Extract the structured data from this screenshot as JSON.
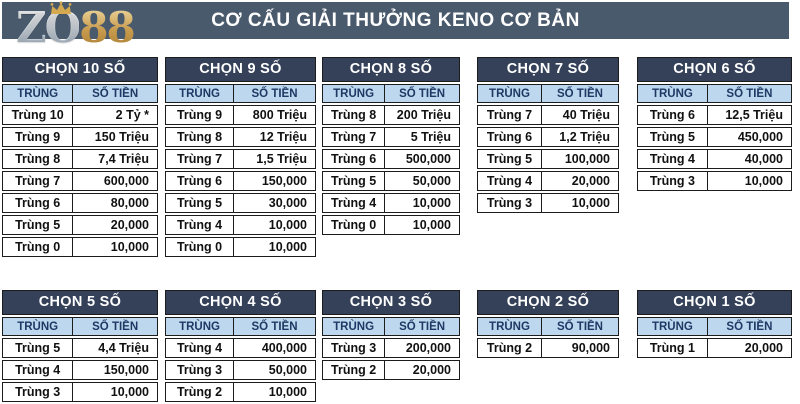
{
  "banner": {
    "title": "CƠ CẤU GIẢI THƯỞNG KENO CƠ BẢN",
    "logo": {
      "text_main": "ZO",
      "text_accent": "88",
      "crown_icon": "gold-crown"
    }
  },
  "table_columns": {
    "match_label": "TRÙNG",
    "amount_label": "SỐ TIỀN"
  },
  "prize_tables": [
    {
      "title": "CHỌN 10 SỐ",
      "rows": [
        {
          "match": "Trùng 10",
          "amount": "2 Tỷ *"
        },
        {
          "match": "Trùng 9",
          "amount": "150 Triệu"
        },
        {
          "match": "Trùng 8",
          "amount": "7,4 Triệu"
        },
        {
          "match": "Trùng 7",
          "amount": "600,000"
        },
        {
          "match": "Trùng 6",
          "amount": "80,000"
        },
        {
          "match": "Trùng 5",
          "amount": "20,000"
        },
        {
          "match": "Trùng 0",
          "amount": "10,000"
        }
      ]
    },
    {
      "title": "CHỌN 9 SỐ",
      "rows": [
        {
          "match": "Trùng 9",
          "amount": "800 Triệu"
        },
        {
          "match": "Trùng 8",
          "amount": "12 Triệu"
        },
        {
          "match": "Trùng 7",
          "amount": "1,5 Triệu"
        },
        {
          "match": "Trùng 6",
          "amount": "150,000"
        },
        {
          "match": "Trùng 5",
          "amount": "30,000"
        },
        {
          "match": "Trùng 4",
          "amount": "10,000"
        },
        {
          "match": "Trùng 0",
          "amount": "10,000"
        }
      ]
    },
    {
      "title": "CHỌN 8 SỐ",
      "rows": [
        {
          "match": "Trùng 8",
          "amount": "200 Triệu"
        },
        {
          "match": "Trùng 7",
          "amount": "5 Triệu"
        },
        {
          "match": "Trùng 6",
          "amount": "500,000"
        },
        {
          "match": "Trùng 5",
          "amount": "50,000"
        },
        {
          "match": "Trùng 4",
          "amount": "10,000"
        },
        {
          "match": "Trùng 0",
          "amount": "10,000"
        }
      ]
    },
    {
      "title": "CHỌN 7 SỐ",
      "rows": [
        {
          "match": "Trùng 7",
          "amount": "40 Triệu"
        },
        {
          "match": "Trùng 6",
          "amount": "1,2 Triệu"
        },
        {
          "match": "Trùng 5",
          "amount": "100,000"
        },
        {
          "match": "Trùng 4",
          "amount": "20,000"
        },
        {
          "match": "Trùng 3",
          "amount": "10,000"
        }
      ]
    },
    {
      "title": "CHỌN 6 SỐ",
      "rows": [
        {
          "match": "Trùng 6",
          "amount": "12,5 Triệu"
        },
        {
          "match": "Trùng 5",
          "amount": "450,000"
        },
        {
          "match": "Trùng 4",
          "amount": "40,000"
        },
        {
          "match": "Trùng 3",
          "amount": "10,000"
        }
      ]
    },
    {
      "title": "CHỌN 5 SỐ",
      "rows": [
        {
          "match": "Trùng 5",
          "amount": "4,4 Triệu"
        },
        {
          "match": "Trùng 4",
          "amount": "150,000"
        },
        {
          "match": "Trùng 3",
          "amount": "10,000"
        }
      ]
    },
    {
      "title": "CHỌN 4 SỐ",
      "rows": [
        {
          "match": "Trùng 4",
          "amount": "400,000"
        },
        {
          "match": "Trùng 3",
          "amount": "50,000"
        },
        {
          "match": "Trùng 2",
          "amount": "10,000"
        }
      ]
    },
    {
      "title": "CHỌN 3 SỐ",
      "rows": [
        {
          "match": "Trùng 3",
          "amount": "200,000"
        },
        {
          "match": "Trùng 2",
          "amount": "20,000"
        }
      ]
    },
    {
      "title": "CHỌN 2 SỐ",
      "rows": [
        {
          "match": "Trùng 2",
          "amount": "90,000"
        }
      ]
    },
    {
      "title": "CHỌN 1 SỐ",
      "rows": [
        {
          "match": "Trùng 1",
          "amount": "20,000"
        }
      ]
    }
  ],
  "colors": {
    "banner_bg": "#4a5a6d",
    "table_title_bg": "#344158",
    "subheader_bg": "#bdd7ee",
    "subheader_text": "#1f3864",
    "border": "#1c1c1c",
    "logo_silver": "#dbe3ea",
    "logo_gold": "#c89b4e"
  }
}
